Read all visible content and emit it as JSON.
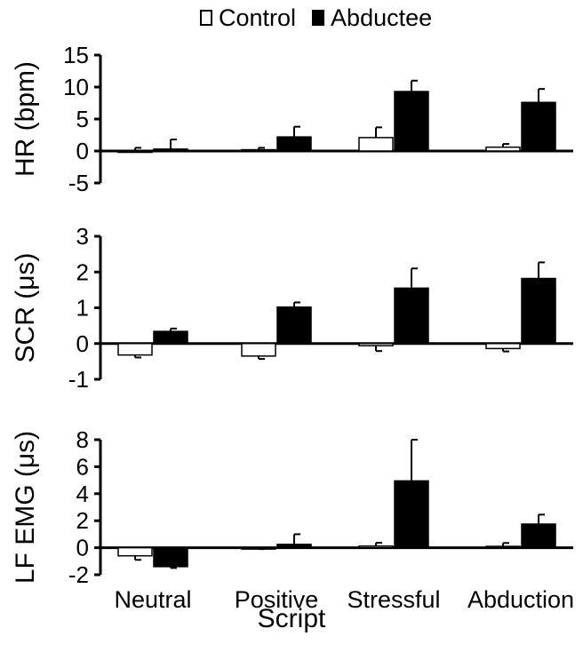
{
  "legend": {
    "series1": "Control",
    "series2": "Abductee"
  },
  "xlabel": "Script",
  "chart_data": [
    {
      "type": "bar",
      "ylabel": "HR (bpm)",
      "ylim": [
        -5,
        15
      ],
      "yticks": [
        "15",
        "10",
        "5",
        "0",
        "-5"
      ],
      "categories": [
        "Neutral",
        "Positive",
        "Stressful",
        "Abduction"
      ],
      "series": [
        {
          "name": "Control",
          "values": [
            0.0,
            0.2,
            2.1,
            0.6
          ],
          "errors": [
            0.5,
            0.3,
            1.6,
            0.5
          ]
        },
        {
          "name": "Abductee",
          "values": [
            0.3,
            2.2,
            9.3,
            7.6
          ],
          "errors": [
            1.5,
            1.6,
            1.7,
            2.1
          ]
        }
      ]
    },
    {
      "type": "bar",
      "ylabel": "SCR (μs)",
      "ylim": [
        -1,
        3
      ],
      "yticks": [
        "3",
        "2",
        "1",
        "0",
        "-1"
      ],
      "categories": [
        "Neutral",
        "Positive",
        "Stressful",
        "Abduction"
      ],
      "series": [
        {
          "name": "Control",
          "values": [
            -0.32,
            -0.35,
            -0.06,
            -0.14
          ],
          "errors": [
            0.07,
            0.08,
            0.15,
            0.08
          ]
        },
        {
          "name": "Abductee",
          "values": [
            0.34,
            1.02,
            1.55,
            1.82
          ],
          "errors": [
            0.08,
            0.13,
            0.55,
            0.45
          ]
        }
      ]
    },
    {
      "type": "bar",
      "ylabel": "LF EMG (μs)",
      "ylim": [
        -2,
        8
      ],
      "yticks": [
        "8",
        "6",
        "4",
        "2",
        "0",
        "-2"
      ],
      "categories": [
        "Neutral",
        "Positive",
        "Stressful",
        "Abduction"
      ],
      "series": [
        {
          "name": "Control",
          "values": [
            -0.6,
            -0.05,
            0.12,
            0.1
          ],
          "errors": [
            0.3,
            0.05,
            0.25,
            0.25
          ]
        },
        {
          "name": "Abductee",
          "values": [
            -1.4,
            0.25,
            4.95,
            1.75
          ],
          "errors": [
            0.1,
            0.75,
            3.05,
            0.7
          ]
        }
      ]
    }
  ]
}
